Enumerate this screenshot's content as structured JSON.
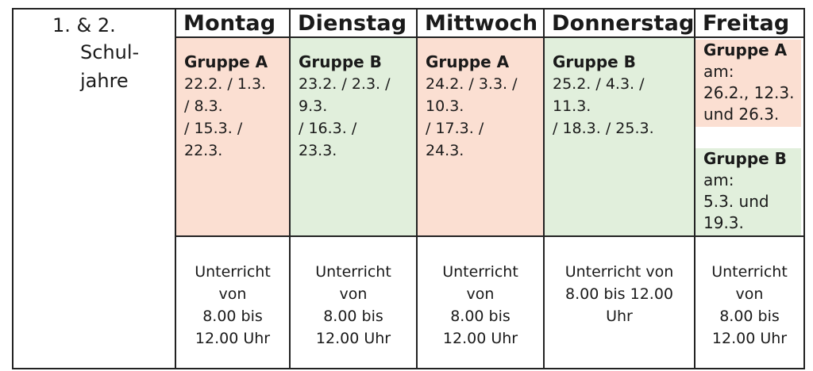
{
  "year_label": {
    "line1": "1. & 2.",
    "line2": "Schul-",
    "line3": "jahre"
  },
  "colors": {
    "group_a": "#fbdfd2",
    "group_b": "#e1efdc",
    "border": "#222222"
  },
  "days": [
    {
      "name": "Montag",
      "group": "Gruppe A",
      "dates": [
        "22.2. / 1.3.",
        "/ 8.3.",
        "/ 15.3. /",
        "22.3."
      ],
      "time": [
        "Unterricht",
        "von",
        "8.00 bis",
        "12.00 Uhr"
      ]
    },
    {
      "name": "Dienstag",
      "group": "Gruppe B",
      "dates": [
        "23.2. / 2.3. /",
        "9.3.",
        "/ 16.3. /",
        "23.3."
      ],
      "time": [
        "Unterricht",
        "von",
        "8.00 bis",
        "12.00 Uhr"
      ]
    },
    {
      "name": "Mittwoch",
      "group": "Gruppe A",
      "dates": [
        "24.2. / 3.3. /",
        "10.3.",
        "/ 17.3. /",
        "24.3."
      ],
      "time": [
        "Unterricht",
        "von",
        "8.00 bis",
        "12.00 Uhr"
      ]
    },
    {
      "name": "Donnerstag",
      "group": "Gruppe B",
      "dates": [
        "25.2. / 4.3. /",
        "11.3.",
        "/ 18.3. / 25.3."
      ],
      "time": [
        "Unterricht von",
        "8.00 bis 12.00",
        "Uhr"
      ]
    },
    {
      "name": "Freitag",
      "groups": [
        {
          "name": "Gruppe A",
          "lines": [
            "am:",
            "26.2., 12.3.",
            "und 26.3."
          ]
        },
        {
          "name": "Gruppe B",
          "lines": [
            "am:",
            "5.3. und",
            "19.3."
          ]
        }
      ],
      "time": [
        "Unterricht",
        "von",
        "8.00 bis",
        "12.00 Uhr"
      ]
    }
  ]
}
